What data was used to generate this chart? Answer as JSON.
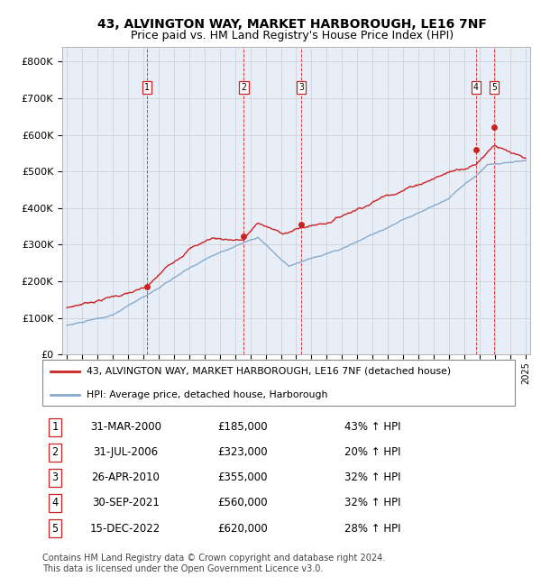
{
  "title": "43, ALVINGTON WAY, MARKET HARBOROUGH, LE16 7NF",
  "subtitle": "Price paid vs. HM Land Registry's House Price Index (HPI)",
  "ylabel_ticks": [
    "£0",
    "£100K",
    "£200K",
    "£300K",
    "£400K",
    "£500K",
    "£600K",
    "£700K",
    "£800K"
  ],
  "ytick_values": [
    0,
    100000,
    200000,
    300000,
    400000,
    500000,
    600000,
    700000,
    800000
  ],
  "ylim": [
    0,
    840000
  ],
  "xlim_start": 1994.7,
  "xlim_end": 2025.3,
  "transactions": [
    {
      "num": 1,
      "date_val": 2000.25,
      "price": 185000,
      "label": "31-MAR-2000",
      "price_str": "£185,000",
      "hpi_str": "43% ↑ HPI"
    },
    {
      "num": 2,
      "date_val": 2006.58,
      "price": 323000,
      "label": "31-JUL-2006",
      "price_str": "£323,000",
      "hpi_str": "20% ↑ HPI"
    },
    {
      "num": 3,
      "date_val": 2010.33,
      "price": 355000,
      "label": "26-APR-2010",
      "price_str": "£355,000",
      "hpi_str": "32% ↑ HPI"
    },
    {
      "num": 4,
      "date_val": 2021.75,
      "price": 560000,
      "label": "30-SEP-2021",
      "price_str": "£560,000",
      "hpi_str": "32% ↑ HPI"
    },
    {
      "num": 5,
      "date_val": 2022.96,
      "price": 620000,
      "label": "15-DEC-2022",
      "price_str": "£620,000",
      "hpi_str": "28% ↑ HPI"
    }
  ],
  "legend_line1": "43, ALVINGTON WAY, MARKET HARBOROUGH, LE16 7NF (detached house)",
  "legend_line2": "HPI: Average price, detached house, Harborough",
  "footer": "Contains HM Land Registry data © Crown copyright and database right 2024.\nThis data is licensed under the Open Government Licence v3.0.",
  "red_color": "#cc2222",
  "blue_color": "#88aacc",
  "bg_color": "#e8eef8",
  "grid_color": "#cccccc",
  "dashed_color": "#cc2222",
  "title_fontsize": 10,
  "subtitle_fontsize": 9
}
